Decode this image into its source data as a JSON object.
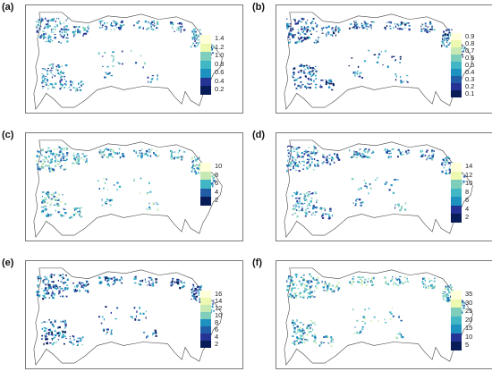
{
  "figure": {
    "panels": [
      {
        "id": "a",
        "label": "(a)",
        "legend": [
          "1.4",
          "1.2",
          "1.0",
          "0.8",
          "0.6",
          "0.4",
          "0.2"
        ],
        "legend_dir": "light-top",
        "scheme": "medium"
      },
      {
        "id": "b",
        "label": "(b)",
        "legend": [
          "0.9",
          "0.8",
          "0.7",
          "0.6",
          "0.5",
          "0.4",
          "0.3",
          "0.2",
          "0.1"
        ],
        "legend_dir": "light-top",
        "scheme": "dark"
      },
      {
        "id": "c",
        "label": "(c)",
        "legend": [
          "10",
          "8",
          "6",
          "4",
          "2"
        ],
        "legend_dir": "light-top",
        "scheme": "light"
      },
      {
        "id": "d",
        "label": "(d)",
        "legend": [
          "14",
          "12",
          "10",
          "8",
          "6",
          "4",
          "2"
        ],
        "legend_dir": "light-top",
        "scheme": "medium"
      },
      {
        "id": "e",
        "label": "(e)",
        "legend": [
          "16",
          "14",
          "12",
          "10",
          "8",
          "6",
          "4",
          "2"
        ],
        "legend_dir": "light-top",
        "scheme": "dark"
      },
      {
        "id": "f",
        "label": "(f)",
        "legend": [
          "35",
          "30",
          "25",
          "20",
          "15",
          "10",
          "5"
        ],
        "legend_dir": "light-top",
        "scheme": "light"
      }
    ],
    "colors": {
      "ramp": [
        "#ffffd9",
        "#edf8b1",
        "#c7e9b4",
        "#7fcdbb",
        "#41b6c4",
        "#1d91c0",
        "#225ea8",
        "#253494",
        "#081d58"
      ],
      "border": "#444444",
      "frame": "#7a7a7a"
    }
  }
}
